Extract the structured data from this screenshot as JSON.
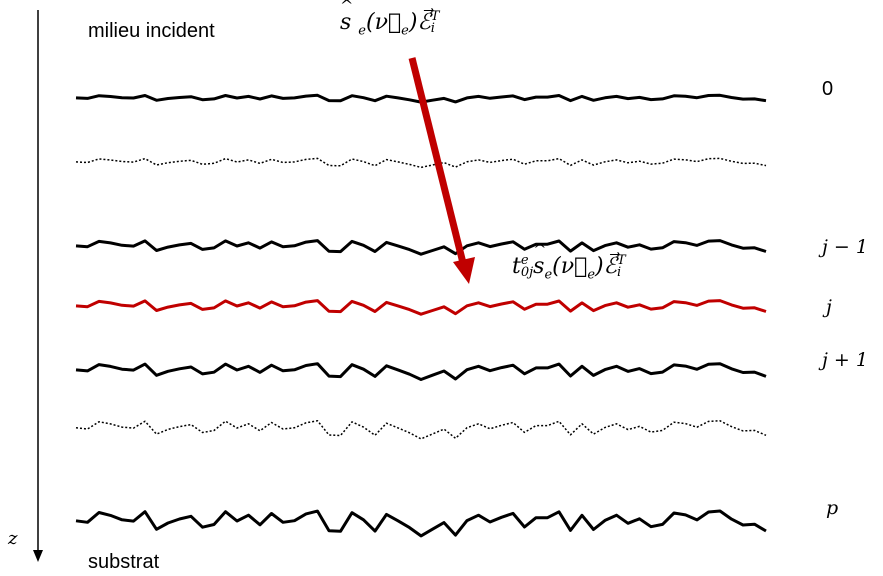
{
  "colors": {
    "interface": "#000000",
    "highlight": "#c00000",
    "arrow": "#c00000"
  },
  "labels": {
    "incident_medium": "milieu incident",
    "substrate": "substrat",
    "axis": "z"
  },
  "interfaces": [
    {
      "label": "0",
      "style": "solid",
      "color": "#000000"
    },
    {
      "label": "",
      "style": "dotted",
      "color": "#000000"
    },
    {
      "label": "j − 1",
      "style": "solid",
      "color": "#000000"
    },
    {
      "label": "j",
      "style": "solid",
      "color": "#c00000"
    },
    {
      "label": "j + 1",
      "style": "solid",
      "color": "#000000"
    },
    {
      "label": "",
      "style": "dotted",
      "color": "#000000"
    },
    {
      "label": "p",
      "style": "solid",
      "color": "#000000"
    }
  ],
  "formulas": {
    "incident": {
      "s": "s",
      "s_sub": "e",
      "nu": "(ν⃗",
      "nu_sub": "e",
      "nu_close": ")",
      "E": "ℰ⃗",
      "E_sub": "i",
      "E_sup": "T"
    },
    "transmitted": {
      "t": "t",
      "t_sup": "e",
      "t_sub": "0j",
      "s": "s",
      "s_sub": "e",
      "nu": "(ν⃗",
      "nu_sub": "e",
      "nu_close": ")",
      "E": "ℰ⃗",
      "E_sub": "i",
      "E_sup": "T"
    }
  }
}
